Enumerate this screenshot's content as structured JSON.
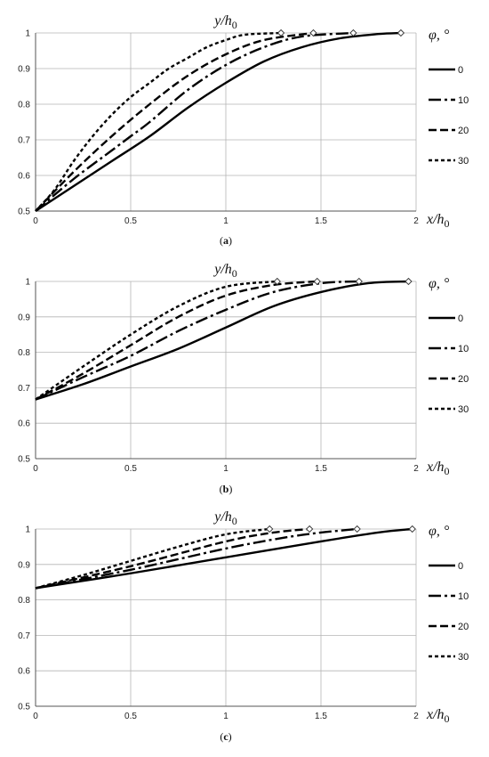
{
  "legend_title": "φ, °",
  "chart_data": [
    {
      "type": "line",
      "caption_letter": "a",
      "xlabel_main": "x/h",
      "xlabel_sub": "0",
      "ylabel_main": "y/h",
      "ylabel_sub": "0",
      "xlim": [
        0,
        2
      ],
      "ylim": [
        0.5,
        1
      ],
      "xticks": [
        "0",
        "0.5",
        "1",
        "1.5",
        "2"
      ],
      "yticks": [
        "0.5",
        "0.6",
        "0.7",
        "0.8",
        "0.9",
        "1"
      ],
      "grid": true,
      "legend_position": "right",
      "series": [
        {
          "name": "0",
          "dash": "solid",
          "end_marker": [
            1.92,
            1.0
          ],
          "points": [
            [
              0,
              0.5
            ],
            [
              0.2,
              0.57
            ],
            [
              0.4,
              0.64
            ],
            [
              0.6,
              0.71
            ],
            [
              0.8,
              0.79
            ],
            [
              1.0,
              0.86
            ],
            [
              1.2,
              0.92
            ],
            [
              1.4,
              0.96
            ],
            [
              1.6,
              0.985
            ],
            [
              1.8,
              0.997
            ],
            [
              1.92,
              1.0
            ]
          ]
        },
        {
          "name": "10",
          "dash": "dashdot",
          "end_marker": [
            1.67,
            1.0
          ],
          "points": [
            [
              0,
              0.5
            ],
            [
              0.2,
              0.59
            ],
            [
              0.4,
              0.67
            ],
            [
              0.5,
              0.71
            ],
            [
              0.6,
              0.75
            ],
            [
              0.8,
              0.84
            ],
            [
              1.0,
              0.91
            ],
            [
              1.2,
              0.96
            ],
            [
              1.4,
              0.99
            ],
            [
              1.67,
              1.0
            ]
          ]
        },
        {
          "name": "20",
          "dash": "dash",
          "end_marker": [
            1.46,
            1.0
          ],
          "points": [
            [
              0,
              0.5
            ],
            [
              0.2,
              0.61
            ],
            [
              0.4,
              0.71
            ],
            [
              0.6,
              0.8
            ],
            [
              0.8,
              0.88
            ],
            [
              1.0,
              0.94
            ],
            [
              1.2,
              0.98
            ],
            [
              1.46,
              1.0
            ]
          ]
        },
        {
          "name": "30",
          "dash": "shortdash",
          "end_marker": [
            1.29,
            1.0
          ],
          "points": [
            [
              0,
              0.5
            ],
            [
              0.1,
              0.56
            ],
            [
              0.2,
              0.64
            ],
            [
              0.3,
              0.71
            ],
            [
              0.4,
              0.77
            ],
            [
              0.5,
              0.82
            ],
            [
              0.6,
              0.86
            ],
            [
              0.7,
              0.9
            ],
            [
              0.8,
              0.93
            ],
            [
              0.9,
              0.96
            ],
            [
              1.0,
              0.98
            ],
            [
              1.1,
              0.995
            ],
            [
              1.29,
              1.0
            ]
          ]
        }
      ]
    },
    {
      "type": "line",
      "caption_letter": "b",
      "xlabel_main": "x/h",
      "xlabel_sub": "0",
      "ylabel_main": "y/h",
      "ylabel_sub": "0",
      "xlim": [
        0,
        2
      ],
      "ylim": [
        0.5,
        1
      ],
      "xticks": [
        "0",
        "0.5",
        "1",
        "1.5",
        "2"
      ],
      "yticks": [
        "0.5",
        "0.6",
        "0.7",
        "0.8",
        "0.9",
        "1"
      ],
      "grid": true,
      "legend_position": "right",
      "series": [
        {
          "name": "0",
          "dash": "solid",
          "end_marker": [
            1.96,
            1.0
          ],
          "points": [
            [
              0,
              0.667
            ],
            [
              0.25,
              0.71
            ],
            [
              0.5,
              0.76
            ],
            [
              0.75,
              0.81
            ],
            [
              1.0,
              0.87
            ],
            [
              1.25,
              0.93
            ],
            [
              1.5,
              0.97
            ],
            [
              1.75,
              0.995
            ],
            [
              1.96,
              1.0
            ]
          ]
        },
        {
          "name": "10",
          "dash": "dashdot",
          "end_marker": [
            1.7,
            1.0
          ],
          "points": [
            [
              0,
              0.667
            ],
            [
              0.25,
              0.73
            ],
            [
              0.5,
              0.79
            ],
            [
              0.75,
              0.86
            ],
            [
              1.0,
              0.92
            ],
            [
              1.25,
              0.97
            ],
            [
              1.5,
              0.995
            ],
            [
              1.7,
              1.0
            ]
          ]
        },
        {
          "name": "20",
          "dash": "dash",
          "end_marker": [
            1.48,
            1.0
          ],
          "points": [
            [
              0,
              0.667
            ],
            [
              0.25,
              0.74
            ],
            [
              0.5,
              0.82
            ],
            [
              0.75,
              0.9
            ],
            [
              1.0,
              0.96
            ],
            [
              1.25,
              0.99
            ],
            [
              1.48,
              1.0
            ]
          ]
        },
        {
          "name": "30",
          "dash": "shortdash",
          "end_marker": [
            1.27,
            1.0
          ],
          "points": [
            [
              0,
              0.667
            ],
            [
              0.25,
              0.76
            ],
            [
              0.5,
              0.85
            ],
            [
              0.75,
              0.93
            ],
            [
              1.0,
              0.985
            ],
            [
              1.27,
              1.0
            ]
          ]
        }
      ]
    },
    {
      "type": "line",
      "caption_letter": "c",
      "xlabel_main": "x/h",
      "xlabel_sub": "0",
      "ylabel_main": "y/h",
      "ylabel_sub": "0",
      "xlim": [
        0,
        2
      ],
      "ylim": [
        0.5,
        1
      ],
      "xticks": [
        "0",
        "0.5",
        "1",
        "1.5",
        "2"
      ],
      "yticks": [
        "0.5",
        "0.6",
        "0.7",
        "0.8",
        "0.9",
        "1"
      ],
      "grid": true,
      "legend_position": "right",
      "series": [
        {
          "name": "0",
          "dash": "solid",
          "end_marker": [
            1.98,
            1.0
          ],
          "points": [
            [
              0,
              0.833
            ],
            [
              0.5,
              0.875
            ],
            [
              1.0,
              0.92
            ],
            [
              1.5,
              0.965
            ],
            [
              1.8,
              0.99
            ],
            [
              1.98,
              1.0
            ]
          ]
        },
        {
          "name": "10",
          "dash": "dashdot",
          "end_marker": [
            1.69,
            1.0
          ],
          "points": [
            [
              0,
              0.833
            ],
            [
              0.5,
              0.885
            ],
            [
              1.0,
              0.945
            ],
            [
              1.3,
              0.975
            ],
            [
              1.5,
              0.99
            ],
            [
              1.69,
              1.0
            ]
          ]
        },
        {
          "name": "20",
          "dash": "dash",
          "end_marker": [
            1.44,
            1.0
          ],
          "points": [
            [
              0,
              0.833
            ],
            [
              0.5,
              0.895
            ],
            [
              1.0,
              0.965
            ],
            [
              1.25,
              0.99
            ],
            [
              1.44,
              1.0
            ]
          ]
        },
        {
          "name": "30",
          "dash": "shortdash",
          "end_marker": [
            1.23,
            1.0
          ],
          "points": [
            [
              0,
              0.833
            ],
            [
              0.25,
              0.87
            ],
            [
              0.5,
              0.91
            ],
            [
              0.75,
              0.95
            ],
            [
              1.0,
              0.985
            ],
            [
              1.23,
              1.0
            ]
          ]
        }
      ]
    }
  ]
}
